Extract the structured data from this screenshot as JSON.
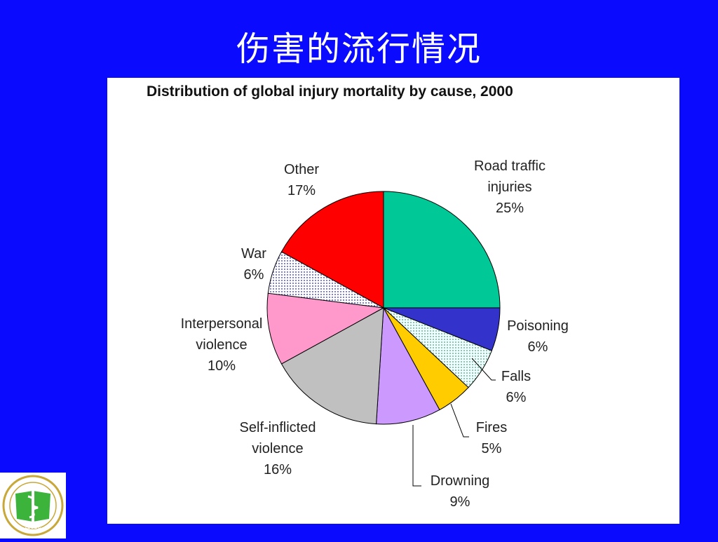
{
  "slide": {
    "title": "伤害的流行情况"
  },
  "logo": {
    "text": "ZJCDC",
    "ring_text": "浙江省疾病预防控制中心"
  },
  "chart_data": {
    "type": "pie",
    "title": "Distribution of global injury mortality by cause, 2000",
    "slices": [
      {
        "label": "Road traffic injuries",
        "label_lines": [
          "Road traffic",
          "injuries",
          "25%"
        ],
        "value": 25,
        "color": "#00c896",
        "pattern": "solid"
      },
      {
        "label": "Poisoning",
        "label_lines": [
          "Poisoning",
          "6%"
        ],
        "value": 6,
        "color": "#3333cc",
        "pattern": "solid"
      },
      {
        "label": "Falls",
        "label_lines": [
          "Falls",
          "6%"
        ],
        "value": 6,
        "color": "#bff2e6",
        "pattern": "dotted"
      },
      {
        "label": "Fires",
        "label_lines": [
          "Fires",
          "5%"
        ],
        "value": 5,
        "color": "#ffcc00",
        "pattern": "solid"
      },
      {
        "label": "Drowning",
        "label_lines": [
          "Drowning",
          "9%"
        ],
        "value": 9,
        "color": "#cc99ff",
        "pattern": "solid"
      },
      {
        "label": "Self-inflicted violence",
        "label_lines": [
          "Self-inflicted",
          "violence",
          "16%"
        ],
        "value": 16,
        "color": "#c0c0c0",
        "pattern": "solid"
      },
      {
        "label": "Interpersonal violence",
        "label_lines": [
          "Interpersonal",
          "violence",
          "10%"
        ],
        "value": 10,
        "color": "#ff99cc",
        "pattern": "solid"
      },
      {
        "label": "War",
        "label_lines": [
          "War",
          "6%"
        ],
        "value": 6,
        "color": "#c8c8ff",
        "pattern": "dotted"
      },
      {
        "label": "Other",
        "label_lines": [
          "Other",
          "17%"
        ],
        "value": 17,
        "color": "#ff0000",
        "pattern": "solid"
      }
    ]
  }
}
